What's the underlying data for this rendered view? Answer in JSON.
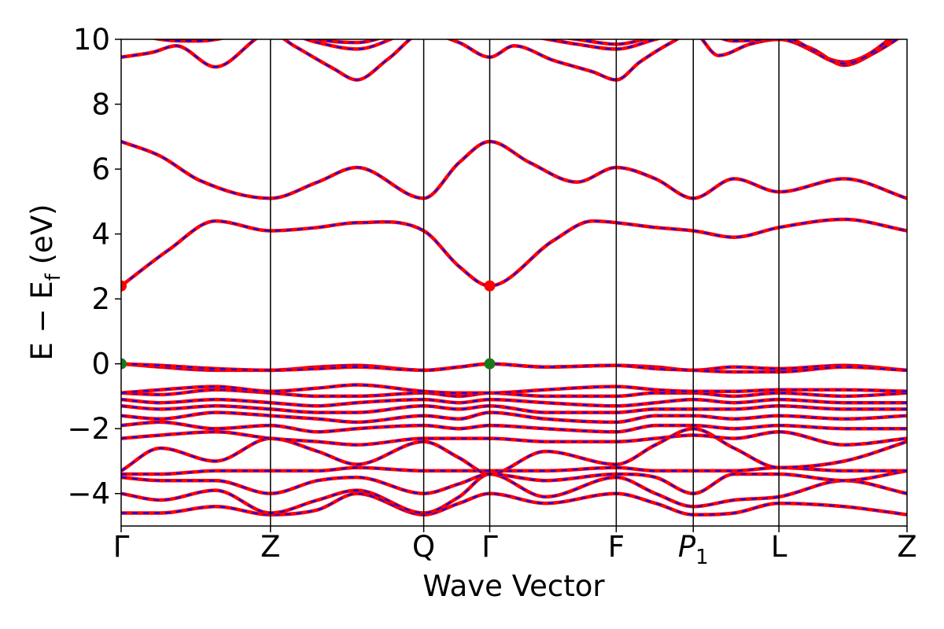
{
  "chart_data": {
    "type": "line",
    "xlabel": "Wave Vector",
    "ylabel_main": "E − E",
    "ylabel_sub": "f",
    "ylabel_unit": " (eV)",
    "ylim": [
      -5,
      10
    ],
    "xlim": [
      0,
      1
    ],
    "yticks": [
      -4,
      -2,
      0,
      2,
      4,
      6,
      8,
      10
    ],
    "ytick_labels": [
      "−4",
      "−2",
      "0",
      "2",
      "4",
      "6",
      "8",
      "10"
    ],
    "kpoints": [
      {
        "label": "Γ",
        "sub": "",
        "x": 0.0
      },
      {
        "label": "Z",
        "sub": "",
        "x": 0.19
      },
      {
        "label": "Q",
        "sub": "",
        "x": 0.385
      },
      {
        "label": "Γ",
        "sub": "",
        "x": 0.469
      },
      {
        "label": "F",
        "sub": "",
        "x": 0.63
      },
      {
        "label": "P",
        "sub": "1",
        "x": 0.728
      },
      {
        "label": "L",
        "sub": "",
        "x": 0.837
      },
      {
        "label": "Z",
        "sub": "",
        "x": 1.0
      }
    ],
    "grid": false,
    "series_colors": {
      "line": "#ff0000",
      "dash": "#0000ff"
    },
    "bands": [
      {
        "x": [
          0,
          0.05,
          0.12,
          0.19,
          0.25,
          0.3,
          0.385,
          0.43,
          0.469,
          0.54,
          0.63,
          0.68,
          0.728,
          0.78,
          0.837,
          0.92,
          1.0
        ],
        "y": [
          -4.6,
          -4.6,
          -4.4,
          -4.65,
          -4.5,
          -4.0,
          -4.65,
          -4.3,
          -4.0,
          -4.3,
          -4.0,
          -4.3,
          -4.65,
          -4.6,
          -4.3,
          -4.4,
          -4.65
        ]
      },
      {
        "x": [
          0,
          0.05,
          0.12,
          0.19,
          0.25,
          0.3,
          0.385,
          0.43,
          0.469,
          0.54,
          0.63,
          0.68,
          0.728,
          0.78,
          0.837,
          0.92,
          1.0
        ],
        "y": [
          -4.0,
          -4.2,
          -3.9,
          -4.6,
          -4.2,
          -3.9,
          -4.6,
          -4.1,
          -3.4,
          -4.1,
          -3.5,
          -4.0,
          -4.4,
          -4.2,
          -4.1,
          -3.6,
          -4.0
        ]
      },
      {
        "x": [
          0,
          0.05,
          0.12,
          0.19,
          0.25,
          0.3,
          0.385,
          0.43,
          0.469,
          0.54,
          0.63,
          0.68,
          0.728,
          0.78,
          0.837,
          0.92,
          1.0
        ],
        "y": [
          -3.5,
          -3.6,
          -3.6,
          -4.0,
          -3.6,
          -3.5,
          -4.0,
          -3.7,
          -3.4,
          -3.6,
          -3.4,
          -3.5,
          -4.0,
          -3.4,
          -3.4,
          -3.6,
          -3.3
        ]
      },
      {
        "x": [
          0,
          0.05,
          0.12,
          0.19,
          0.25,
          0.3,
          0.385,
          0.43,
          0.469,
          0.54,
          0.63,
          0.68,
          0.728,
          0.78,
          0.837,
          0.92,
          1.0
        ],
        "y": [
          -3.4,
          -3.4,
          -3.3,
          -3.3,
          -3.3,
          -3.2,
          -3.3,
          -3.3,
          -3.3,
          -3.3,
          -3.2,
          -3.3,
          -3.3,
          -3.3,
          -3.2,
          -3.3,
          -3.3
        ]
      },
      {
        "x": [
          0,
          0.05,
          0.12,
          0.19,
          0.25,
          0.3,
          0.385,
          0.43,
          0.469,
          0.54,
          0.63,
          0.68,
          0.728,
          0.78,
          0.837,
          0.92,
          1.0
        ],
        "y": [
          -3.3,
          -2.6,
          -3.0,
          -2.3,
          -2.7,
          -3.1,
          -2.4,
          -2.9,
          -3.4,
          -2.7,
          -3.1,
          -2.5,
          -2.0,
          -2.6,
          -3.2,
          -3.0,
          -2.4
        ]
      },
      {
        "x": [
          0,
          0.05,
          0.12,
          0.19,
          0.25,
          0.3,
          0.385,
          0.43,
          0.469,
          0.54,
          0.63,
          0.68,
          0.728,
          0.78,
          0.837,
          0.92,
          1.0
        ],
        "y": [
          -2.3,
          -2.2,
          -2.1,
          -2.3,
          -2.4,
          -2.5,
          -2.3,
          -2.3,
          -2.3,
          -2.4,
          -2.4,
          -2.3,
          -2.2,
          -2.3,
          -2.1,
          -2.5,
          -2.3
        ]
      },
      {
        "x": [
          0,
          0.05,
          0.12,
          0.19,
          0.25,
          0.3,
          0.385,
          0.43,
          0.469,
          0.54,
          0.63,
          0.68,
          0.728,
          0.78,
          0.837,
          0.92,
          1.0
        ],
        "y": [
          -1.9,
          -1.8,
          -2.0,
          -1.9,
          -2.1,
          -2.0,
          -1.9,
          -2.0,
          -1.9,
          -2.0,
          -2.1,
          -1.9,
          -1.9,
          -2.0,
          -1.9,
          -2.0,
          -2.0
        ]
      },
      {
        "x": [
          0,
          0.05,
          0.12,
          0.19,
          0.25,
          0.3,
          0.385,
          0.43,
          0.469,
          0.54,
          0.63,
          0.68,
          0.728,
          0.78,
          0.837,
          0.92,
          1.0
        ],
        "y": [
          -1.6,
          -1.7,
          -1.5,
          -1.6,
          -1.7,
          -1.8,
          -1.6,
          -1.7,
          -1.5,
          -1.7,
          -1.8,
          -1.6,
          -1.6,
          -1.7,
          -1.6,
          -1.7,
          -1.6
        ]
      },
      {
        "x": [
          0,
          0.05,
          0.12,
          0.19,
          0.25,
          0.3,
          0.385,
          0.43,
          0.469,
          0.54,
          0.63,
          0.68,
          0.728,
          0.78,
          0.837,
          0.92,
          1.0
        ],
        "y": [
          -1.3,
          -1.4,
          -1.3,
          -1.4,
          -1.5,
          -1.5,
          -1.3,
          -1.4,
          -1.3,
          -1.5,
          -1.5,
          -1.4,
          -1.4,
          -1.4,
          -1.3,
          -1.4,
          -1.4
        ]
      },
      {
        "x": [
          0,
          0.05,
          0.12,
          0.19,
          0.25,
          0.3,
          0.385,
          0.43,
          0.469,
          0.54,
          0.63,
          0.68,
          0.728,
          0.78,
          0.837,
          0.92,
          1.0
        ],
        "y": [
          -1.1,
          -1.2,
          -1.1,
          -1.2,
          -1.3,
          -1.2,
          -1.1,
          -1.2,
          -1.1,
          -1.2,
          -1.3,
          -1.2,
          -1.1,
          -1.2,
          -1.1,
          -1.2,
          -1.2
        ]
      },
      {
        "x": [
          0,
          0.05,
          0.12,
          0.19,
          0.25,
          0.3,
          0.385,
          0.43,
          0.469,
          0.54,
          0.63,
          0.68,
          0.728,
          0.78,
          0.837,
          0.92,
          1.0
        ],
        "y": [
          -0.9,
          -0.95,
          -0.8,
          -0.9,
          -1.0,
          -1.0,
          -0.9,
          -1.0,
          -0.9,
          -1.0,
          -1.0,
          -0.9,
          -0.9,
          -1.0,
          -0.9,
          -1.0,
          -0.9
        ]
      },
      {
        "x": [
          0,
          0.05,
          0.12,
          0.19,
          0.25,
          0.3,
          0.385,
          0.43,
          0.469,
          0.54,
          0.63,
          0.68,
          0.728,
          0.78,
          0.837,
          0.92,
          1.0
        ],
        "y": [
          -0.9,
          -0.8,
          -0.7,
          -0.85,
          -0.75,
          -0.65,
          -0.85,
          -0.9,
          -0.9,
          -0.8,
          -0.7,
          -0.8,
          -0.85,
          -0.85,
          -0.8,
          -0.8,
          -0.85
        ]
      },
      {
        "x": [
          0,
          0.05,
          0.12,
          0.19,
          0.25,
          0.3,
          0.385,
          0.43,
          0.469,
          0.54,
          0.63,
          0.68,
          0.728,
          0.78,
          0.837,
          0.92,
          1.0
        ],
        "y": [
          0.0,
          -0.1,
          -0.2,
          -0.2,
          -0.1,
          -0.05,
          -0.2,
          -0.1,
          0.0,
          -0.1,
          -0.05,
          -0.1,
          -0.2,
          -0.1,
          -0.15,
          -0.05,
          -0.2
        ]
      },
      {
        "x": [
          0,
          0.05,
          0.12,
          0.19,
          0.25,
          0.3,
          0.385,
          0.43,
          0.469,
          0.54,
          0.63,
          0.68,
          0.728,
          0.78,
          0.837,
          0.92,
          1.0
        ],
        "y": [
          0.0,
          -0.05,
          -0.15,
          -0.2,
          -0.15,
          -0.1,
          -0.2,
          -0.1,
          0.0,
          -0.1,
          -0.05,
          -0.15,
          -0.2,
          -0.25,
          -0.25,
          -0.1,
          -0.2
        ]
      },
      {
        "x": [
          0,
          0.06,
          0.12,
          0.19,
          0.25,
          0.3,
          0.385,
          0.43,
          0.469,
          0.55,
          0.6,
          0.63,
          0.68,
          0.728,
          0.78,
          0.837,
          0.92,
          1.0
        ],
        "y": [
          2.4,
          3.5,
          4.4,
          4.1,
          4.2,
          4.35,
          4.1,
          3.0,
          2.4,
          3.8,
          4.4,
          4.35,
          4.2,
          4.1,
          3.9,
          4.2,
          4.45,
          4.1
        ]
      },
      {
        "x": [
          0,
          0.05,
          0.1,
          0.19,
          0.25,
          0.3,
          0.385,
          0.43,
          0.469,
          0.52,
          0.58,
          0.63,
          0.68,
          0.728,
          0.78,
          0.837,
          0.92,
          1.0
        ],
        "y": [
          6.85,
          6.4,
          5.65,
          5.1,
          5.6,
          6.05,
          5.1,
          6.2,
          6.85,
          6.2,
          5.6,
          6.05,
          5.7,
          5.1,
          5.7,
          5.3,
          5.7,
          5.1
        ]
      },
      {
        "x": [
          0,
          0.04,
          0.07,
          0.12,
          0.19,
          0.22,
          0.27,
          0.3,
          0.34,
          0.385,
          0.43,
          0.469,
          0.5,
          0.55,
          0.6,
          0.63,
          0.66,
          0.7,
          0.728,
          0.76,
          0.8,
          0.837,
          0.88,
          0.92,
          0.96,
          1.0
        ],
        "y": [
          9.45,
          9.6,
          9.8,
          9.15,
          10.2,
          9.8,
          9.1,
          8.75,
          9.4,
          10.2,
          9.9,
          9.45,
          9.8,
          9.35,
          9.0,
          8.75,
          9.3,
          9.9,
          10.2,
          9.5,
          9.85,
          10.0,
          9.7,
          9.2,
          9.6,
          10.2
        ]
      },
      {
        "x": [
          0,
          0.05,
          0.1,
          0.19,
          0.25,
          0.3,
          0.385,
          0.43,
          0.469,
          0.52,
          0.58,
          0.63,
          0.68,
          0.728,
          0.78,
          0.837,
          0.92,
          1.0
        ],
        "y": [
          10.3,
          10.0,
          9.95,
          10.3,
          9.9,
          9.7,
          10.3,
          10.1,
          10.3,
          10.1,
          9.85,
          9.7,
          10.0,
          10.3,
          9.95,
          10.0,
          9.3,
          10.3
        ]
      },
      {
        "x": [
          0,
          0.05,
          0.1,
          0.19,
          0.25,
          0.3,
          0.385,
          0.43,
          0.469,
          0.52,
          0.58,
          0.63,
          0.68,
          0.728,
          0.78,
          0.837,
          0.92,
          1.0
        ],
        "y": [
          10.4,
          10.2,
          10.1,
          10.4,
          10.0,
          9.9,
          10.4,
          10.2,
          10.4,
          10.2,
          10.0,
          9.85,
          10.1,
          10.4,
          10.1,
          10.1,
          9.25,
          10.4
        ]
      }
    ],
    "extrema_points": [
      {
        "x": 0.0,
        "y": 2.4,
        "color": "#ff0000"
      },
      {
        "x": 0.469,
        "y": 2.4,
        "color": "#ff0000"
      },
      {
        "x": 0.0,
        "y": 0.0,
        "color": "#1a7a1a"
      },
      {
        "x": 0.469,
        "y": 0.0,
        "color": "#1a7a1a"
      }
    ]
  }
}
